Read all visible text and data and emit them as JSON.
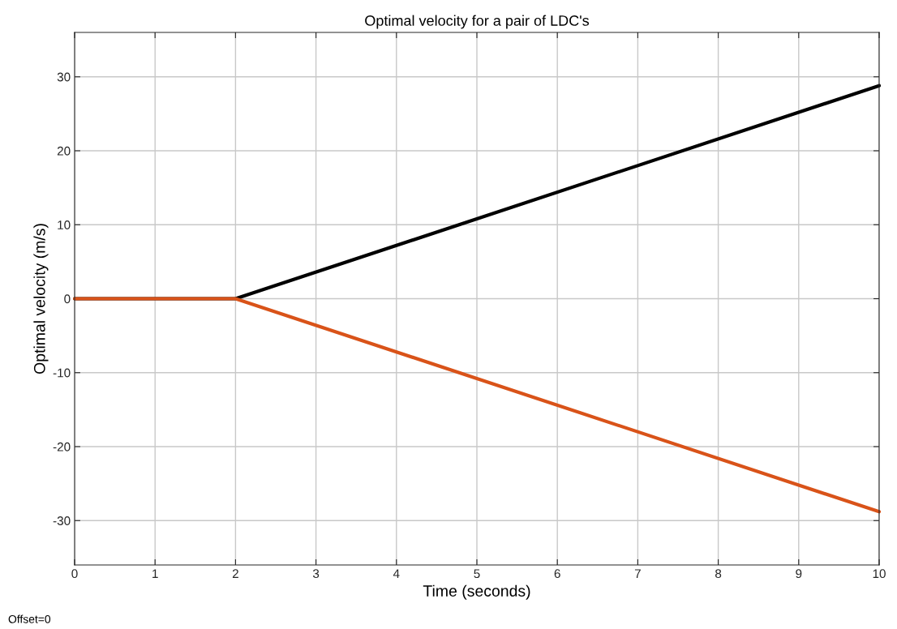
{
  "chart_data": {
    "type": "line",
    "title": "Optimal velocity for a pair of LDC's",
    "xlabel": "Time (seconds)",
    "ylabel": "Optimal velocity (m/s)",
    "series": [
      {
        "color": "#000000",
        "x": [
          0,
          2,
          10
        ],
        "values": [
          0,
          0,
          28.8
        ]
      },
      {
        "color": "#d95319",
        "x": [
          0,
          2,
          10
        ],
        "values": [
          0,
          0,
          -28.8
        ]
      }
    ],
    "xlim": [
      0,
      10
    ],
    "xticks": [
      0,
      1,
      2,
      3,
      4,
      5,
      6,
      7,
      8,
      9,
      10
    ],
    "ylim": [
      -36,
      36
    ],
    "yticks": [
      -30,
      -20,
      -10,
      0,
      10,
      20,
      30
    ],
    "grid": true,
    "line_style": "solid",
    "annotations": [
      "Offset=0"
    ]
  }
}
